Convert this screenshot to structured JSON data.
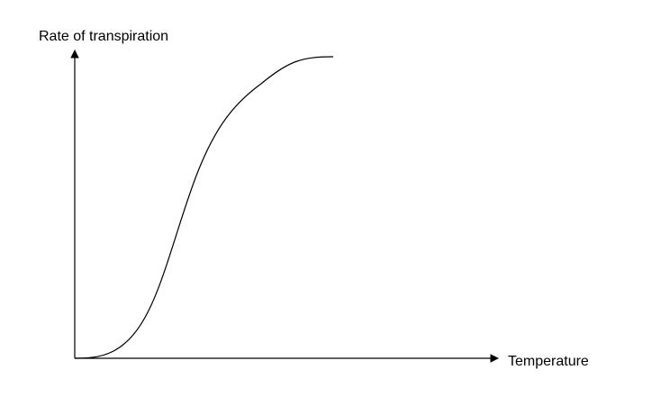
{
  "axes": {
    "y_label": "Rate of transpiration",
    "x_label": "Temperature"
  }
}
